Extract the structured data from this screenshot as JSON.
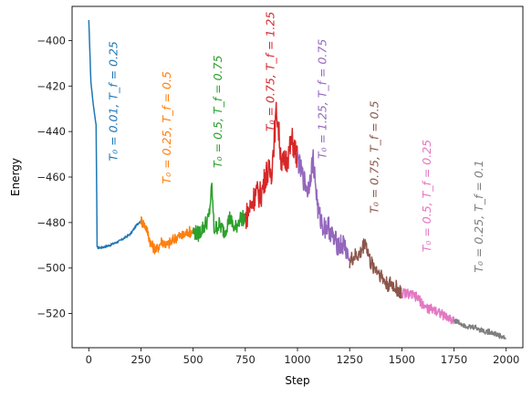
{
  "chart_data": {
    "type": "line",
    "title": "",
    "xlabel": "Step",
    "ylabel": "Energy",
    "xlim": [
      -80,
      2080
    ],
    "ylim": [
      -535,
      -385
    ],
    "xticks": [
      0,
      250,
      500,
      750,
      1000,
      1250,
      1500,
      1750,
      2000
    ],
    "yticks": [
      -520,
      -500,
      -480,
      -460,
      -440,
      -420,
      -400
    ],
    "grid": false,
    "legend": "none",
    "series": [
      {
        "color": "#1f77b4",
        "x": [
          0,
          10,
          20,
          30,
          35,
          40,
          60,
          100,
          150,
          200,
          230,
          250
        ],
        "y": [
          -391,
          -418,
          -427,
          -434,
          -437,
          -491,
          -491,
          -490,
          -488,
          -485,
          -481,
          -479
        ]
      },
      {
        "color": "#ff7f0e",
        "x": [
          250,
          275,
          300,
          325,
          350,
          375,
          400,
          425,
          450,
          475,
          500
        ],
        "y": [
          -479,
          -482,
          -490,
          -492,
          -488,
          -490,
          -488,
          -486,
          -486,
          -484,
          -484
        ]
      },
      {
        "color": "#2ca02c",
        "x": [
          500,
          525,
          550,
          575,
          590,
          600,
          625,
          650,
          675,
          700,
          725,
          750
        ],
        "y": [
          -484,
          -485,
          -482,
          -478,
          -464,
          -483,
          -481,
          -484,
          -478,
          -483,
          -478,
          -478
        ]
      },
      {
        "color": "#d62728",
        "x": [
          750,
          775,
          800,
          825,
          850,
          875,
          900,
          925,
          950,
          975,
          1000
        ],
        "y": [
          -478,
          -473,
          -467,
          -468,
          -458,
          -458,
          -430,
          -455,
          -452,
          -444,
          -452
        ]
      },
      {
        "color": "#9467bd",
        "x": [
          1000,
          1025,
          1050,
          1075,
          1100,
          1125,
          1150,
          1175,
          1200,
          1225,
          1250
        ],
        "y": [
          -452,
          -460,
          -466,
          -452,
          -476,
          -482,
          -482,
          -488,
          -490,
          -490,
          -497
        ]
      },
      {
        "color": "#8c564b",
        "x": [
          1250,
          1275,
          1300,
          1325,
          1350,
          1375,
          1400,
          1425,
          1450,
          1475,
          1500
        ],
        "y": [
          -497,
          -495,
          -494,
          -488,
          -498,
          -500,
          -503,
          -507,
          -507,
          -509,
          -511
        ]
      },
      {
        "color": "#e377c2",
        "x": [
          1500,
          1525,
          1550,
          1575,
          1600,
          1625,
          1650,
          1675,
          1700,
          1725,
          1750
        ],
        "y": [
          -511,
          -511,
          -512,
          -513,
          -516,
          -518,
          -518,
          -519,
          -521,
          -522,
          -523
        ]
      },
      {
        "color": "#7f7f7f",
        "x": [
          1750,
          1775,
          1800,
          1825,
          1850,
          1875,
          1900,
          1925,
          1950,
          1975,
          2000
        ],
        "y": [
          -523,
          -524,
          -525,
          -526,
          -526,
          -527,
          -528,
          -528,
          -529,
          -530,
          -531
        ]
      }
    ],
    "annotations": [
      {
        "text": "T₀ = 0.01, T_f = 0.25",
        "x": 120,
        "y": -453,
        "color": "#1f77b4"
      },
      {
        "text": "T₀ = 0.25, T_f = 0.5",
        "x": 375,
        "y": -463,
        "color": "#ff7f0e"
      },
      {
        "text": "T₀ = 0.5, T_f = 0.75",
        "x": 620,
        "y": -456,
        "color": "#2ca02c"
      },
      {
        "text": "T₀ = 0.75, T_f = 1.25",
        "x": 870,
        "y": -440,
        "color": "#d62728"
      },
      {
        "text": "T₀ = 1.25, T_f = 0.75",
        "x": 1120,
        "y": -452,
        "color": "#9467bd"
      },
      {
        "text": "T₀ = 0.75, T_f = 0.5",
        "x": 1370,
        "y": -476,
        "color": "#8c564b"
      },
      {
        "text": "T₀ = 0.5, T_f = 0.25",
        "x": 1620,
        "y": -493,
        "color": "#e377c2"
      },
      {
        "text": "T₀ = 0.25, T_f = 0.1",
        "x": 1870,
        "y": -502,
        "color": "#7f7f7f"
      }
    ]
  }
}
